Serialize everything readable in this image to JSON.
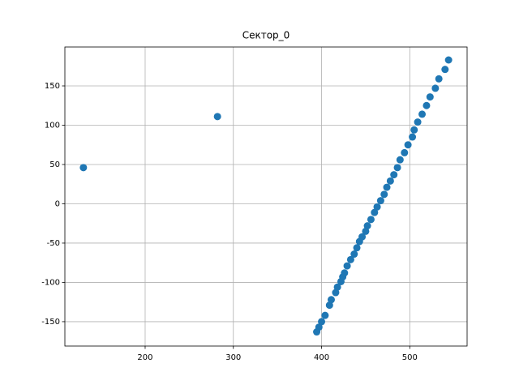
{
  "chart_data": {
    "type": "scatter",
    "title": "Сектор_0",
    "color": "#1f77b4",
    "grid": true,
    "x": [
      130,
      282,
      394.5,
      397,
      400,
      404,
      409,
      411,
      416,
      418,
      422,
      424,
      426,
      429,
      433,
      437,
      440,
      443,
      446,
      450,
      452,
      456,
      460,
      463,
      467,
      471,
      474,
      478,
      482,
      486,
      489,
      494,
      498,
      503,
      505,
      509,
      514,
      519,
      523,
      529,
      533,
      540,
      544
    ],
    "values": [
      46,
      111,
      -163,
      -157,
      -150,
      -142,
      -129,
      -122,
      -113,
      -106,
      -99,
      -93,
      -88,
      -79,
      -71,
      -64,
      -56,
      -48,
      -42,
      -35,
      -28,
      -20,
      -11,
      -4,
      4,
      12,
      21,
      29,
      37,
      46,
      56,
      65,
      75,
      85,
      94,
      104,
      114,
      125,
      136,
      147,
      159,
      171,
      183
    ],
    "xlim": [
      109,
      565
    ],
    "ylim": [
      -181,
      199.5
    ],
    "xticks": [
      200,
      300,
      400,
      500
    ],
    "yticks": [
      -150,
      -100,
      -50,
      0,
      50,
      100,
      150
    ]
  }
}
